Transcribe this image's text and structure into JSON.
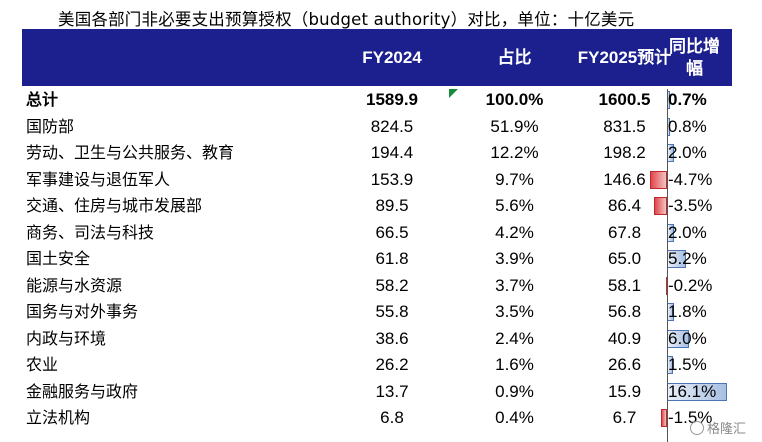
{
  "title": "美国各部门非必要支出预算授权（budget authority）对比，单位：十亿美元",
  "headers": {
    "name": "",
    "fy2024": "FY2024",
    "share": "占比",
    "fy2025": "FY2025预计",
    "yoy": "同比增\n幅"
  },
  "rows": [
    {
      "name": "总计",
      "fy2024": "1589.9",
      "share": "100.0%",
      "fy2025": "1600.5",
      "yoy": "0.7%",
      "yoy_value": 0.7,
      "bold": true
    },
    {
      "name": "国防部",
      "fy2024": "824.5",
      "share": "51.9%",
      "fy2025": "831.5",
      "yoy": "0.8%",
      "yoy_value": 0.8
    },
    {
      "name": "劳动、卫生与公共服务、教育",
      "fy2024": "194.4",
      "share": "12.2%",
      "fy2025": "198.2",
      "yoy": "2.0%",
      "yoy_value": 2.0
    },
    {
      "name": "军事建设与退伍军人",
      "fy2024": "153.9",
      "share": "9.7%",
      "fy2025": "146.6",
      "yoy": "-4.7%",
      "yoy_value": -4.7
    },
    {
      "name": "交通、住房与城市发展部",
      "fy2024": "89.5",
      "share": "5.6%",
      "fy2025": "86.4",
      "yoy": "-3.5%",
      "yoy_value": -3.5
    },
    {
      "name": "商务、司法与科技",
      "fy2024": "66.5",
      "share": "4.2%",
      "fy2025": "67.8",
      "yoy": "2.0%",
      "yoy_value": 2.0
    },
    {
      "name": "国土安全",
      "fy2024": "61.8",
      "share": "3.9%",
      "fy2025": "65.0",
      "yoy": "5.2%",
      "yoy_value": 5.2
    },
    {
      "name": "能源与水资源",
      "fy2024": "58.2",
      "share": "3.7%",
      "fy2025": "58.1",
      "yoy": "-0.2%",
      "yoy_value": -0.2
    },
    {
      "name": "国务与对外事务",
      "fy2024": "55.8",
      "share": "3.5%",
      "fy2025": "56.8",
      "yoy": "1.8%",
      "yoy_value": 1.8
    },
    {
      "name": "内政与环境",
      "fy2024": "38.6",
      "share": "2.4%",
      "fy2025": "40.9",
      "yoy": "6.0%",
      "yoy_value": 6.0
    },
    {
      "name": "农业",
      "fy2024": "26.2",
      "share": "1.6%",
      "fy2025": "26.6",
      "yoy": "1.5%",
      "yoy_value": 1.5
    },
    {
      "name": "金融服务与政府",
      "fy2024": "13.7",
      "share": "0.9%",
      "fy2025": "15.9",
      "yoy": "16.1%",
      "yoy_value": 16.1
    },
    {
      "name": "立法机构",
      "fy2024": "6.8",
      "share": "0.4%",
      "fy2025": "6.7",
      "yoy": "-1.5%",
      "yoy_value": -1.5
    }
  ],
  "colors": {
    "header_bg": "#1c1f8e",
    "positive_bar": "#8fb0de",
    "negative_bar": "#e0474b"
  },
  "watermark": "格隆汇"
}
